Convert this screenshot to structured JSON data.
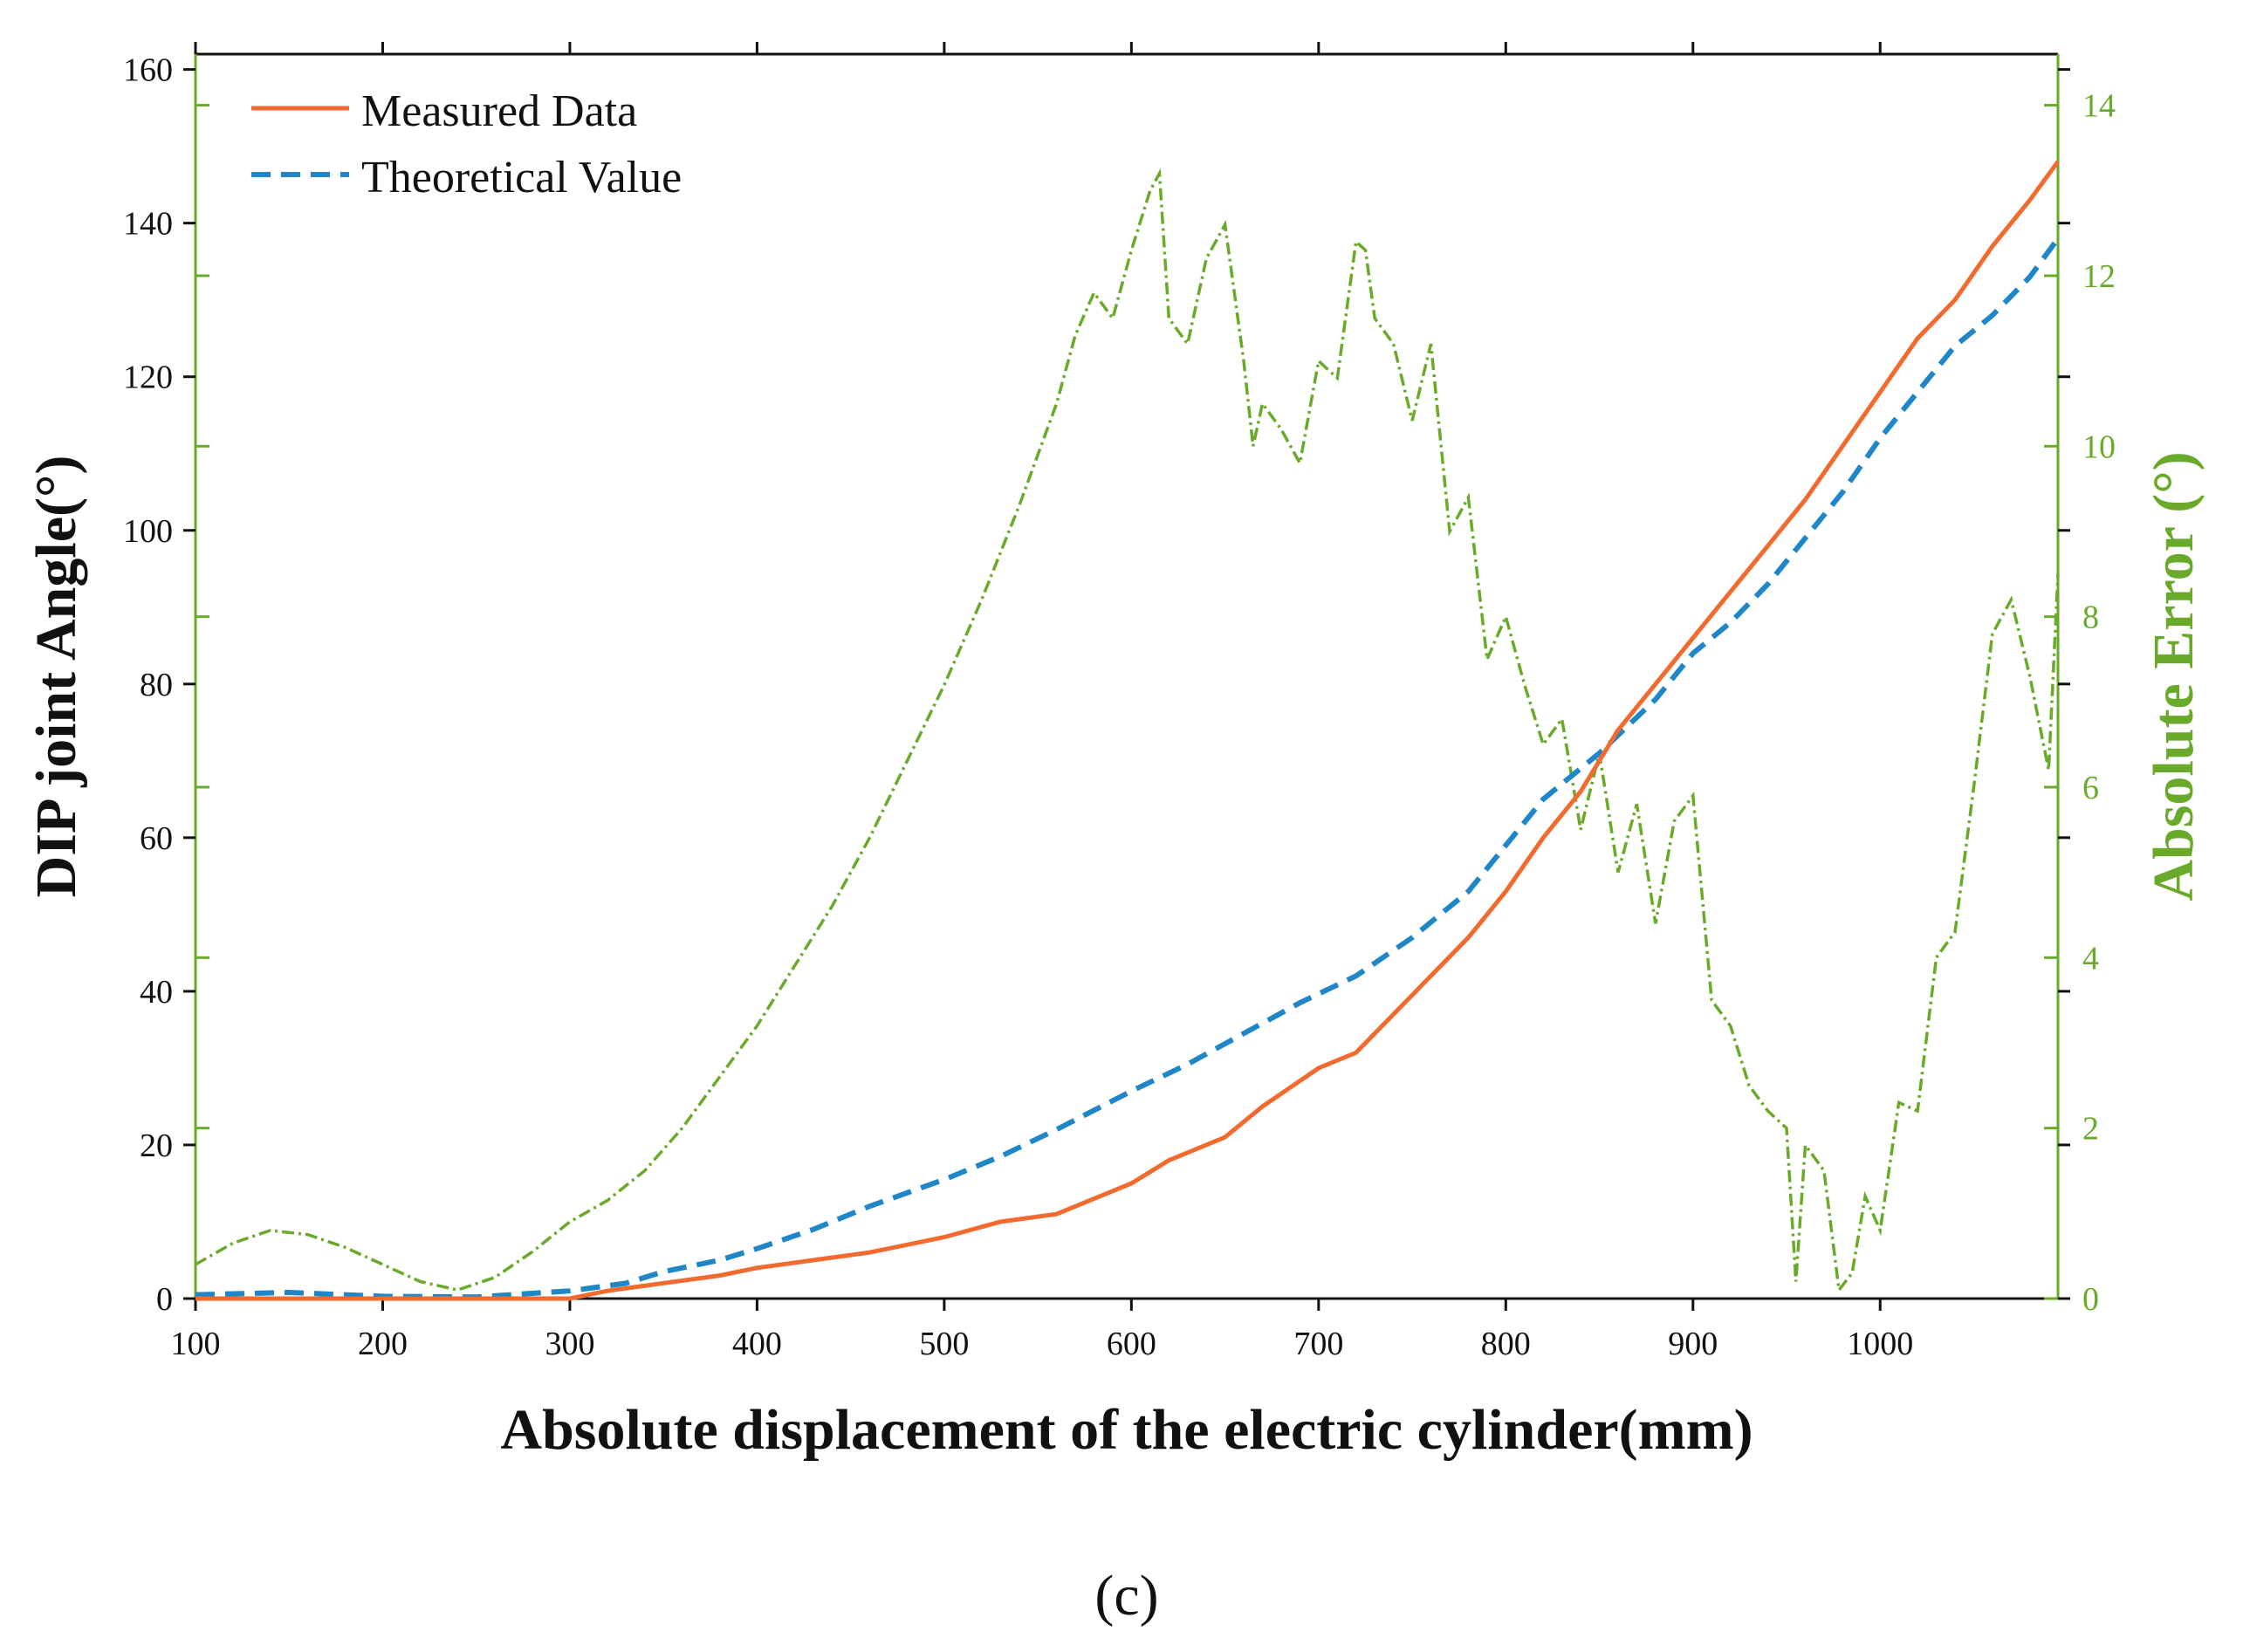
{
  "chart_data": {
    "type": "line",
    "xlabel": "Absolute displacement of the electric cylinder(mm)",
    "ylabel_left": "DIP joint Angle(°)",
    "ylabel_right": "Absolute Error (°)",
    "xlim": [
      100,
      1095
    ],
    "ylim_left": [
      0,
      162
    ],
    "ylim_right": [
      0,
      14.6
    ],
    "x_ticks": [
      "100",
      "200",
      "300",
      "400",
      "500",
      "600",
      "700",
      "800",
      "900",
      "1000"
    ],
    "x_tick_values": [
      100,
      200,
      300,
      400,
      500,
      600,
      700,
      800,
      900,
      1000
    ],
    "y_left_ticks": [
      "0",
      "20",
      "40",
      "60",
      "80",
      "100",
      "120",
      "140",
      "160"
    ],
    "y_left_tick_values": [
      0,
      20,
      40,
      60,
      80,
      100,
      120,
      140,
      160
    ],
    "y_right_ticks": [
      "0",
      "2",
      "4",
      "6",
      "8",
      "10",
      "12",
      "14"
    ],
    "y_right_tick_values": [
      0,
      2,
      4,
      6,
      8,
      10,
      12,
      14
    ],
    "legend": {
      "position": "top-left",
      "entries": [
        {
          "label": "Measured Data",
          "color": "#f26a2e",
          "style": "solid"
        },
        {
          "label": "Theoretical Value",
          "color": "#1f86c8",
          "style": "dashed"
        }
      ]
    },
    "series": [
      {
        "name": "Measured Data",
        "axis": "left",
        "color": "#f26a2e",
        "style": "solid",
        "x": [
          100,
          200,
          300,
          320,
          350,
          380,
          400,
          430,
          460,
          480,
          500,
          530,
          560,
          580,
          600,
          620,
          650,
          670,
          700,
          720,
          740,
          760,
          780,
          800,
          820,
          840,
          860,
          880,
          900,
          920,
          940,
          960,
          980,
          1000,
          1020,
          1040,
          1060,
          1080,
          1095
        ],
        "values": [
          0,
          0,
          0,
          1,
          2,
          3,
          4,
          5,
          6,
          7,
          8,
          10,
          11,
          13,
          15,
          18,
          21,
          25,
          30,
          32,
          37,
          42,
          47,
          53,
          60,
          66,
          74,
          80,
          86,
          92,
          98,
          104,
          111,
          118,
          125,
          130,
          137,
          143,
          148
        ]
      },
      {
        "name": "Theoretical Value",
        "axis": "left",
        "color": "#1f86c8",
        "style": "dashed",
        "x": [
          100,
          150,
          200,
          250,
          300,
          330,
          350,
          380,
          400,
          430,
          460,
          500,
          530,
          560,
          600,
          630,
          660,
          690,
          720,
          750,
          780,
          800,
          820,
          850,
          880,
          900,
          920,
          940,
          960,
          980,
          1000,
          1020,
          1040,
          1060,
          1080,
          1095
        ],
        "values": [
          0.5,
          0.8,
          0.3,
          0.2,
          1,
          2,
          3.5,
          5,
          6.5,
          9,
          12,
          15.5,
          18.5,
          22,
          27,
          30.5,
          34.5,
          38.5,
          42,
          47,
          53,
          59,
          65,
          71,
          78,
          84,
          88,
          93,
          99,
          105,
          112,
          118,
          124,
          128,
          133,
          138
        ]
      },
      {
        "name": "Absolute Error",
        "axis": "right",
        "color": "#6aaa2a",
        "style": "dashdot",
        "x": [
          100,
          120,
          140,
          160,
          180,
          200,
          220,
          240,
          260,
          280,
          300,
          320,
          340,
          360,
          380,
          400,
          420,
          440,
          460,
          480,
          500,
          520,
          540,
          560,
          570,
          580,
          590,
          600,
          610,
          615,
          620,
          630,
          640,
          650,
          660,
          665,
          670,
          680,
          690,
          700,
          710,
          720,
          725,
          730,
          740,
          750,
          760,
          770,
          780,
          790,
          800,
          810,
          820,
          830,
          840,
          850,
          860,
          870,
          880,
          890,
          900,
          910,
          920,
          930,
          940,
          950,
          955,
          960,
          970,
          978,
          985,
          992,
          1000,
          1010,
          1020,
          1030,
          1040,
          1050,
          1060,
          1070,
          1080,
          1090,
          1095
        ],
        "values": [
          0.4,
          0.65,
          0.8,
          0.75,
          0.6,
          0.4,
          0.2,
          0.1,
          0.25,
          0.55,
          0.9,
          1.15,
          1.5,
          2.0,
          2.6,
          3.2,
          3.9,
          4.6,
          5.4,
          6.3,
          7.2,
          8.2,
          9.3,
          10.5,
          11.3,
          11.8,
          11.5,
          12.3,
          13.0,
          13.2,
          11.5,
          11.2,
          12.2,
          12.6,
          11.0,
          10.0,
          10.5,
          10.2,
          9.8,
          11.0,
          10.8,
          12.4,
          12.3,
          11.5,
          11.2,
          10.3,
          11.2,
          9.0,
          9.4,
          7.5,
          8.0,
          7.2,
          6.5,
          6.8,
          5.5,
          6.4,
          5.0,
          5.8,
          4.4,
          5.6,
          5.9,
          3.5,
          3.2,
          2.5,
          2.2,
          2.0,
          0.2,
          1.8,
          1.5,
          0.1,
          0.3,
          1.2,
          0.8,
          2.3,
          2.2,
          4.0,
          4.3,
          6.0,
          7.8,
          8.2,
          7.3,
          6.2,
          8.5
        ]
      }
    ]
  },
  "caption": "(c)"
}
